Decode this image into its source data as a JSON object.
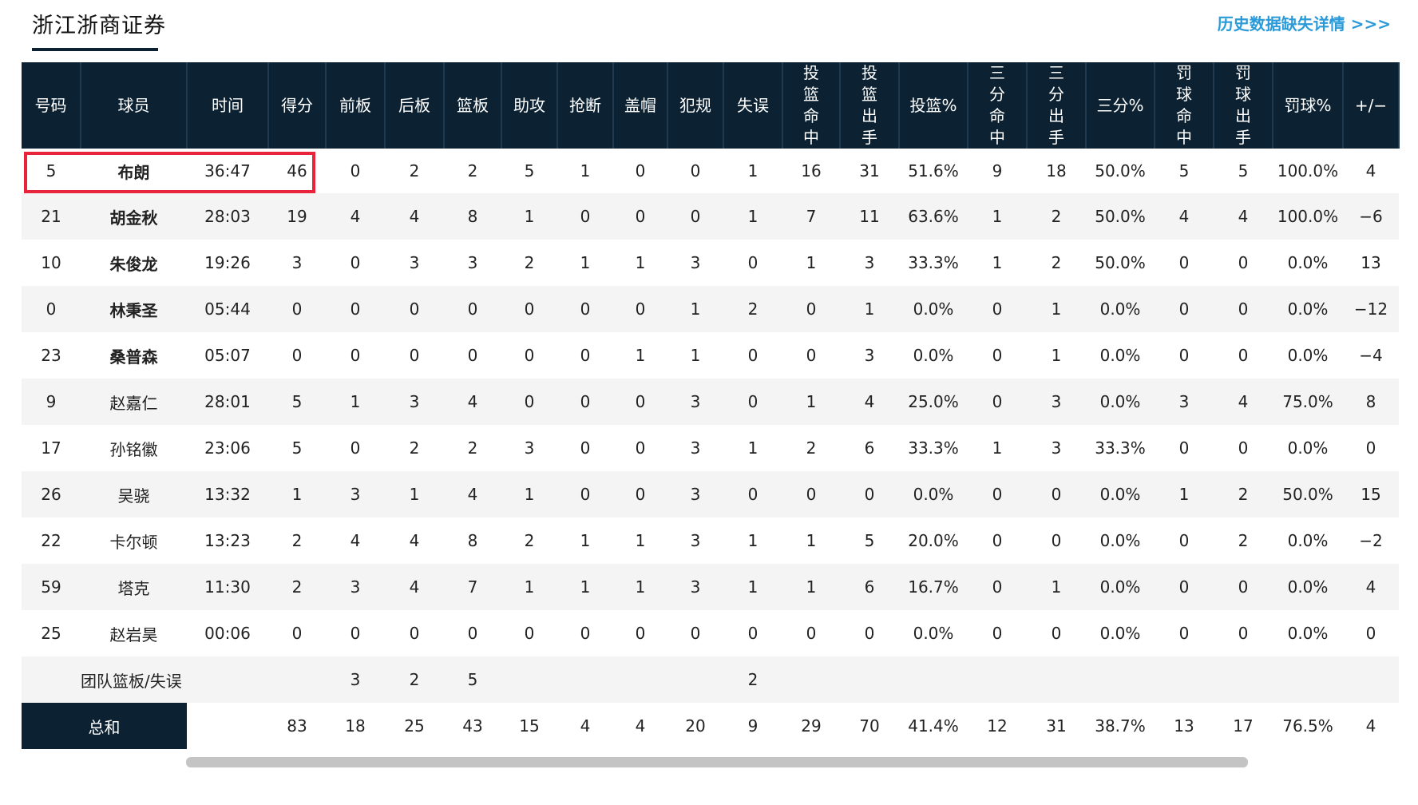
{
  "header": {
    "team_tab": "浙江浙商证券",
    "history_link": "历史数据缺失详情 >>>"
  },
  "columns": [
    "号码",
    "球员",
    "时间",
    "得分",
    "前板",
    "后板",
    "篮板",
    "助攻",
    "抢断",
    "盖帽",
    "犯规",
    "失误",
    "投篮命中",
    "投篮出手",
    "投篮%",
    "三分命中",
    "三分出手",
    "三分%",
    "罚球命中",
    "罚球出手",
    "罚球%",
    "+/−"
  ],
  "players": [
    {
      "num": "5",
      "name": "布朗",
      "time": "36:47",
      "pts": "46",
      "oreb": "0",
      "dreb": "2",
      "reb": "2",
      "ast": "5",
      "stl": "1",
      "blk": "0",
      "pf": "0",
      "to": "1",
      "fgm": "16",
      "fga": "31",
      "fgp": "51.6%",
      "tpm": "9",
      "tpa": "18",
      "tpp": "50.0%",
      "ftm": "5",
      "fta": "5",
      "ftp": "100.0%",
      "pm": "4",
      "starter": true
    },
    {
      "num": "21",
      "name": "胡金秋",
      "time": "28:03",
      "pts": "19",
      "oreb": "4",
      "dreb": "4",
      "reb": "8",
      "ast": "1",
      "stl": "0",
      "blk": "0",
      "pf": "0",
      "to": "1",
      "fgm": "7",
      "fga": "11",
      "fgp": "63.6%",
      "tpm": "1",
      "tpa": "2",
      "tpp": "50.0%",
      "ftm": "4",
      "fta": "4",
      "ftp": "100.0%",
      "pm": "−6",
      "starter": true
    },
    {
      "num": "10",
      "name": "朱俊龙",
      "time": "19:26",
      "pts": "3",
      "oreb": "0",
      "dreb": "3",
      "reb": "3",
      "ast": "2",
      "stl": "1",
      "blk": "1",
      "pf": "3",
      "to": "0",
      "fgm": "1",
      "fga": "3",
      "fgp": "33.3%",
      "tpm": "1",
      "tpa": "2",
      "tpp": "50.0%",
      "ftm": "0",
      "fta": "0",
      "ftp": "0.0%",
      "pm": "13",
      "starter": true
    },
    {
      "num": "0",
      "name": "林秉圣",
      "time": "05:44",
      "pts": "0",
      "oreb": "0",
      "dreb": "0",
      "reb": "0",
      "ast": "0",
      "stl": "0",
      "blk": "0",
      "pf": "1",
      "to": "2",
      "fgm": "0",
      "fga": "1",
      "fgp": "0.0%",
      "tpm": "0",
      "tpa": "1",
      "tpp": "0.0%",
      "ftm": "0",
      "fta": "0",
      "ftp": "0.0%",
      "pm": "−12",
      "starter": true
    },
    {
      "num": "23",
      "name": "桑普森",
      "time": "05:07",
      "pts": "0",
      "oreb": "0",
      "dreb": "0",
      "reb": "0",
      "ast": "0",
      "stl": "0",
      "blk": "1",
      "pf": "1",
      "to": "0",
      "fgm": "0",
      "fga": "3",
      "fgp": "0.0%",
      "tpm": "0",
      "tpa": "1",
      "tpp": "0.0%",
      "ftm": "0",
      "fta": "0",
      "ftp": "0.0%",
      "pm": "−4",
      "starter": true
    },
    {
      "num": "9",
      "name": "赵嘉仁",
      "time": "28:01",
      "pts": "5",
      "oreb": "1",
      "dreb": "3",
      "reb": "4",
      "ast": "0",
      "stl": "0",
      "blk": "0",
      "pf": "3",
      "to": "0",
      "fgm": "1",
      "fga": "4",
      "fgp": "25.0%",
      "tpm": "0",
      "tpa": "3",
      "tpp": "0.0%",
      "ftm": "3",
      "fta": "4",
      "ftp": "75.0%",
      "pm": "8",
      "starter": false
    },
    {
      "num": "17",
      "name": "孙铭徽",
      "time": "23:06",
      "pts": "5",
      "oreb": "0",
      "dreb": "2",
      "reb": "2",
      "ast": "3",
      "stl": "0",
      "blk": "0",
      "pf": "3",
      "to": "1",
      "fgm": "2",
      "fga": "6",
      "fgp": "33.3%",
      "tpm": "1",
      "tpa": "3",
      "tpp": "33.3%",
      "ftm": "0",
      "fta": "0",
      "ftp": "0.0%",
      "pm": "0",
      "starter": false
    },
    {
      "num": "26",
      "name": "吴骁",
      "time": "13:32",
      "pts": "1",
      "oreb": "3",
      "dreb": "1",
      "reb": "4",
      "ast": "1",
      "stl": "0",
      "blk": "0",
      "pf": "3",
      "to": "0",
      "fgm": "0",
      "fga": "0",
      "fgp": "0.0%",
      "tpm": "0",
      "tpa": "0",
      "tpp": "0.0%",
      "ftm": "1",
      "fta": "2",
      "ftp": "50.0%",
      "pm": "15",
      "starter": false
    },
    {
      "num": "22",
      "name": "卡尔顿",
      "time": "13:23",
      "pts": "2",
      "oreb": "4",
      "dreb": "4",
      "reb": "8",
      "ast": "2",
      "stl": "1",
      "blk": "1",
      "pf": "3",
      "to": "1",
      "fgm": "1",
      "fga": "5",
      "fgp": "20.0%",
      "tpm": "0",
      "tpa": "0",
      "tpp": "0.0%",
      "ftm": "0",
      "fta": "2",
      "ftp": "0.0%",
      "pm": "−2",
      "starter": false
    },
    {
      "num": "59",
      "name": "塔克",
      "time": "11:30",
      "pts": "2",
      "oreb": "3",
      "dreb": "4",
      "reb": "7",
      "ast": "1",
      "stl": "1",
      "blk": "1",
      "pf": "3",
      "to": "1",
      "fgm": "1",
      "fga": "6",
      "fgp": "16.7%",
      "tpm": "0",
      "tpa": "1",
      "tpp": "0.0%",
      "ftm": "0",
      "fta": "0",
      "ftp": "0.0%",
      "pm": "4",
      "starter": false
    },
    {
      "num": "25",
      "name": "赵岩昊",
      "time": "00:06",
      "pts": "0",
      "oreb": "0",
      "dreb": "0",
      "reb": "0",
      "ast": "0",
      "stl": "0",
      "blk": "0",
      "pf": "0",
      "to": "0",
      "fgm": "0",
      "fga": "0",
      "fgp": "0.0%",
      "tpm": "0",
      "tpa": "0",
      "tpp": "0.0%",
      "ftm": "0",
      "fta": "0",
      "ftp": "0.0%",
      "pm": "0",
      "starter": false
    }
  ],
  "team_row": {
    "label": "团队篮板/失误",
    "oreb": "3",
    "dreb": "2",
    "reb": "5",
    "to": "2"
  },
  "totals": {
    "label": "总和",
    "pts": "83",
    "oreb": "18",
    "dreb": "25",
    "reb": "43",
    "ast": "15",
    "stl": "4",
    "blk": "4",
    "pf": "20",
    "to": "9",
    "fgm": "29",
    "fga": "70",
    "fgp": "41.4%",
    "tpm": "12",
    "tpa": "31",
    "tpp": "38.7%",
    "ftm": "13",
    "fta": "17",
    "ftp": "76.5%",
    "pm": "4"
  },
  "colors": {
    "header_bg": "#0c2233",
    "link": "#2a9bd8",
    "highlight": "#e8233a"
  }
}
